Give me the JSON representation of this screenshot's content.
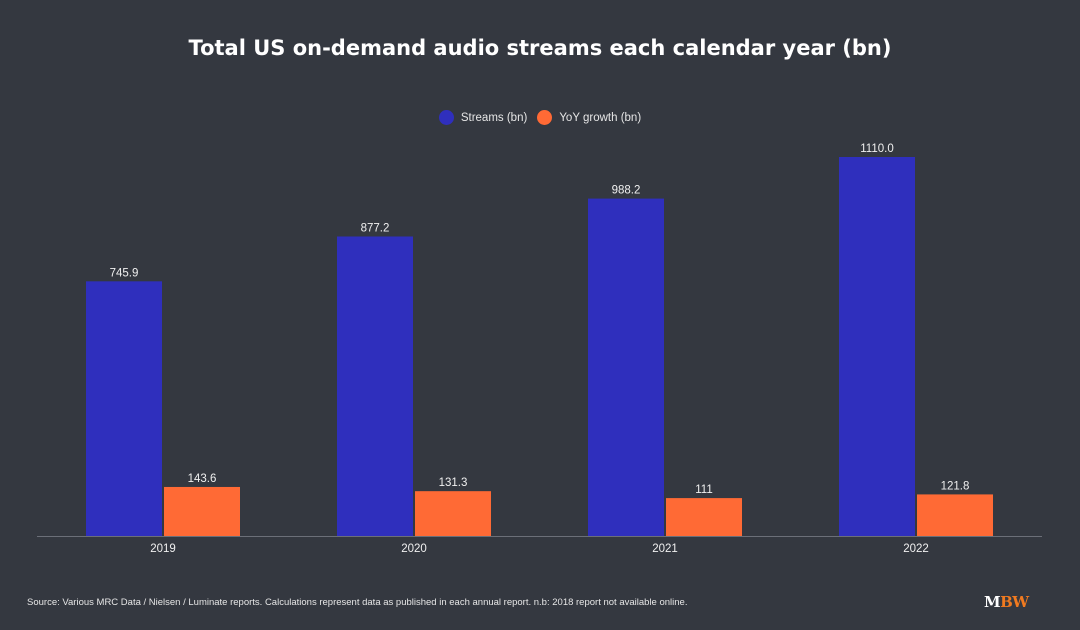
{
  "chart_data": {
    "type": "bar",
    "title": "Total US on-demand audio streams each calendar year (bn)",
    "categories": [
      "2019",
      "2020",
      "2021",
      "2022"
    ],
    "series": [
      {
        "name": "Streams (bn)",
        "color": "#2f2fbd",
        "values": [
          745.9,
          877.2,
          988.2,
          1110.0
        ],
        "labels": [
          "745.9",
          "877.2",
          "988.2",
          "1110.0"
        ]
      },
      {
        "name": "YoY growth (bn)",
        "color": "#ff6a35",
        "values": [
          143.6,
          131.3,
          111,
          121.8
        ],
        "labels": [
          "143.6",
          "131.3",
          "111",
          "121.8"
        ]
      }
    ],
    "xlabel": "",
    "ylabel": "",
    "ylim": [
      0,
      1110
    ],
    "grid": false,
    "legend": "top-center"
  },
  "footer": {
    "source": "Source: Various MRC Data / Nielsen / Luminate reports. Calculations represent data as published in each annual report. n.b: 2018 report not available online.",
    "logo_m": "M",
    "logo_bw": "BW"
  }
}
